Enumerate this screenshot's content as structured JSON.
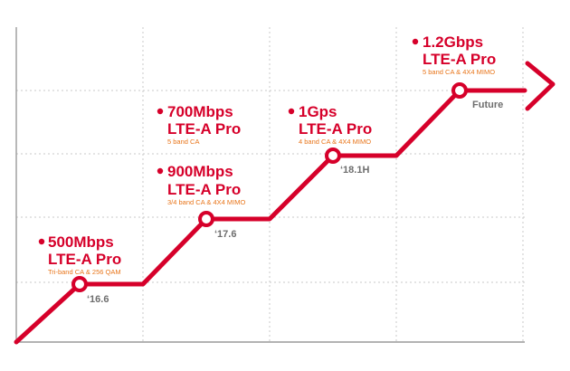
{
  "milestones": [
    {
      "speed": "500Mbps",
      "tech": "LTE-A Pro",
      "detail": "Tri-band CA & 256 QAM",
      "time": "‘16.6"
    },
    {
      "speed": "900Mbps",
      "tech": "LTE-A Pro",
      "detail": "3/4 band CA & 4X4 MIMO",
      "time": "‘17.6"
    },
    {
      "speed": "700Mbps",
      "tech": "LTE-A Pro",
      "detail": "5 band CA",
      "time": ""
    },
    {
      "speed": "1Gps",
      "tech": "LTE-A Pro",
      "detail": "4 band CA & 4X4 MIMO",
      "time": "‘18.1H"
    },
    {
      "speed": "1.2Gbps",
      "tech": "LTE-A Pro",
      "detail": "5 band CA & 4X4 MIMO",
      "time": "Future"
    }
  ],
  "colors": {
    "line": "#d6002a",
    "detail": "#e8751a",
    "time": "#6e6e6e",
    "grid": "#c8c8c8"
  }
}
